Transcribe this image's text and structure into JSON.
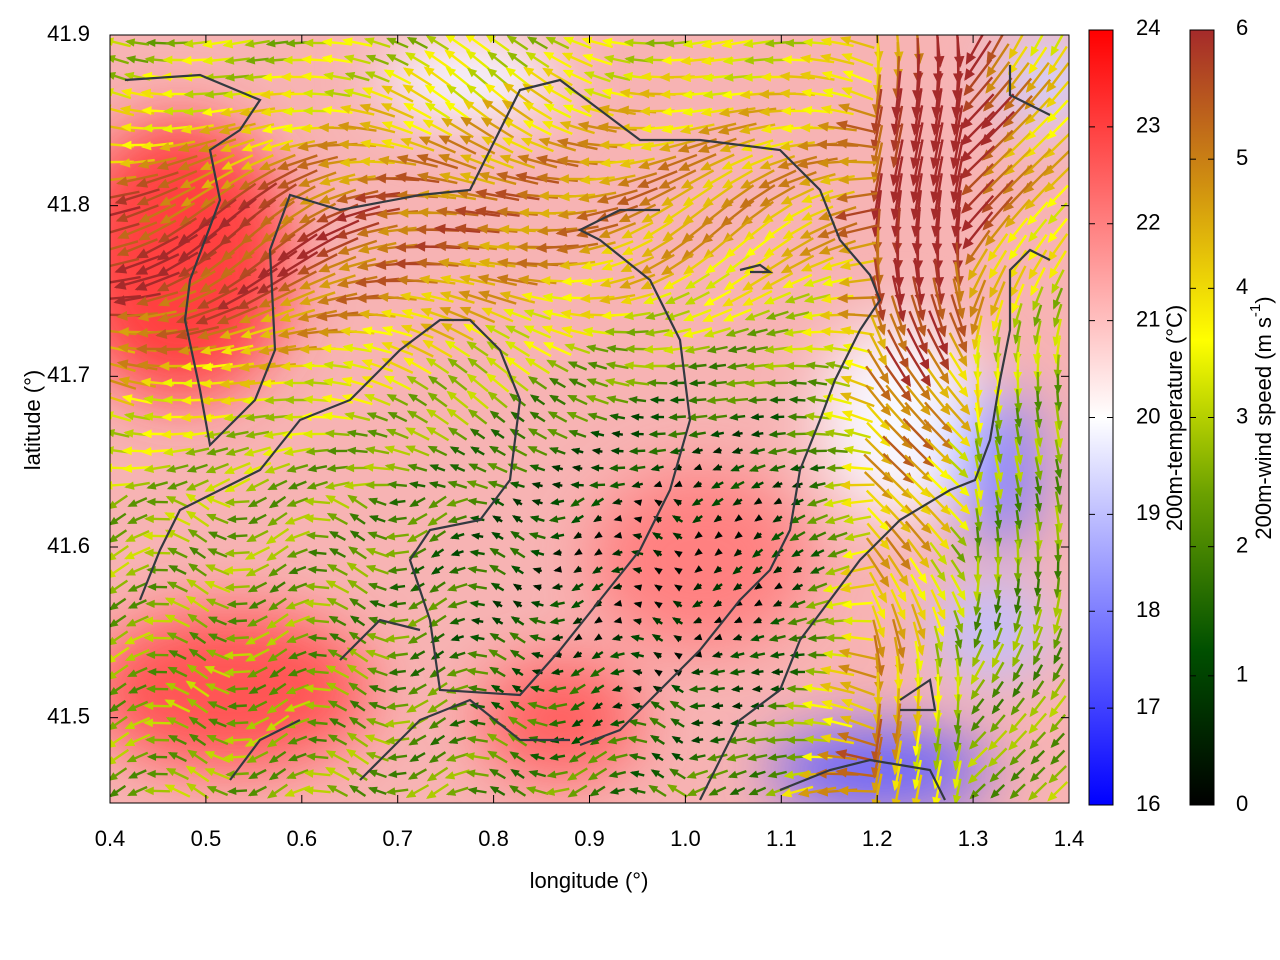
{
  "chart_data": {
    "type": "vector-field",
    "xlabel": "longitude (°)",
    "ylabel": "latitude (°)",
    "xlim": [
      0.4,
      1.4
    ],
    "xticks": [
      0.4,
      0.5,
      0.6,
      0.7,
      0.8,
      0.9,
      {
        "value": 1,
        "label": "1.0"
      },
      1.1,
      1.2,
      1.3,
      1.4
    ],
    "ylim": [
      41.45,
      41.9
    ],
    "yticks": [
      41.5,
      41.6,
      41.7,
      41.8,
      41.9
    ],
    "colorbars": [
      {
        "label": "200m-temperature (°C)",
        "lim": [
          16,
          24
        ],
        "ticks": [
          16,
          17,
          18,
          19,
          20,
          21,
          22,
          23,
          24
        ],
        "colormap": [
          "#0000ff",
          "#ffffff",
          "#ff0000"
        ]
      },
      {
        "label": "200m-wind speed (m s",
        "label_sup": "-1",
        "label_end": ")",
        "lim": [
          0,
          6
        ],
        "ticks": [
          0,
          1,
          2,
          3,
          4,
          5,
          6
        ],
        "colormap": [
          "#000000",
          "#005000",
          "#6aa000",
          "#ffff00",
          "#d09010",
          "#a52a2a"
        ]
      }
    ]
  }
}
